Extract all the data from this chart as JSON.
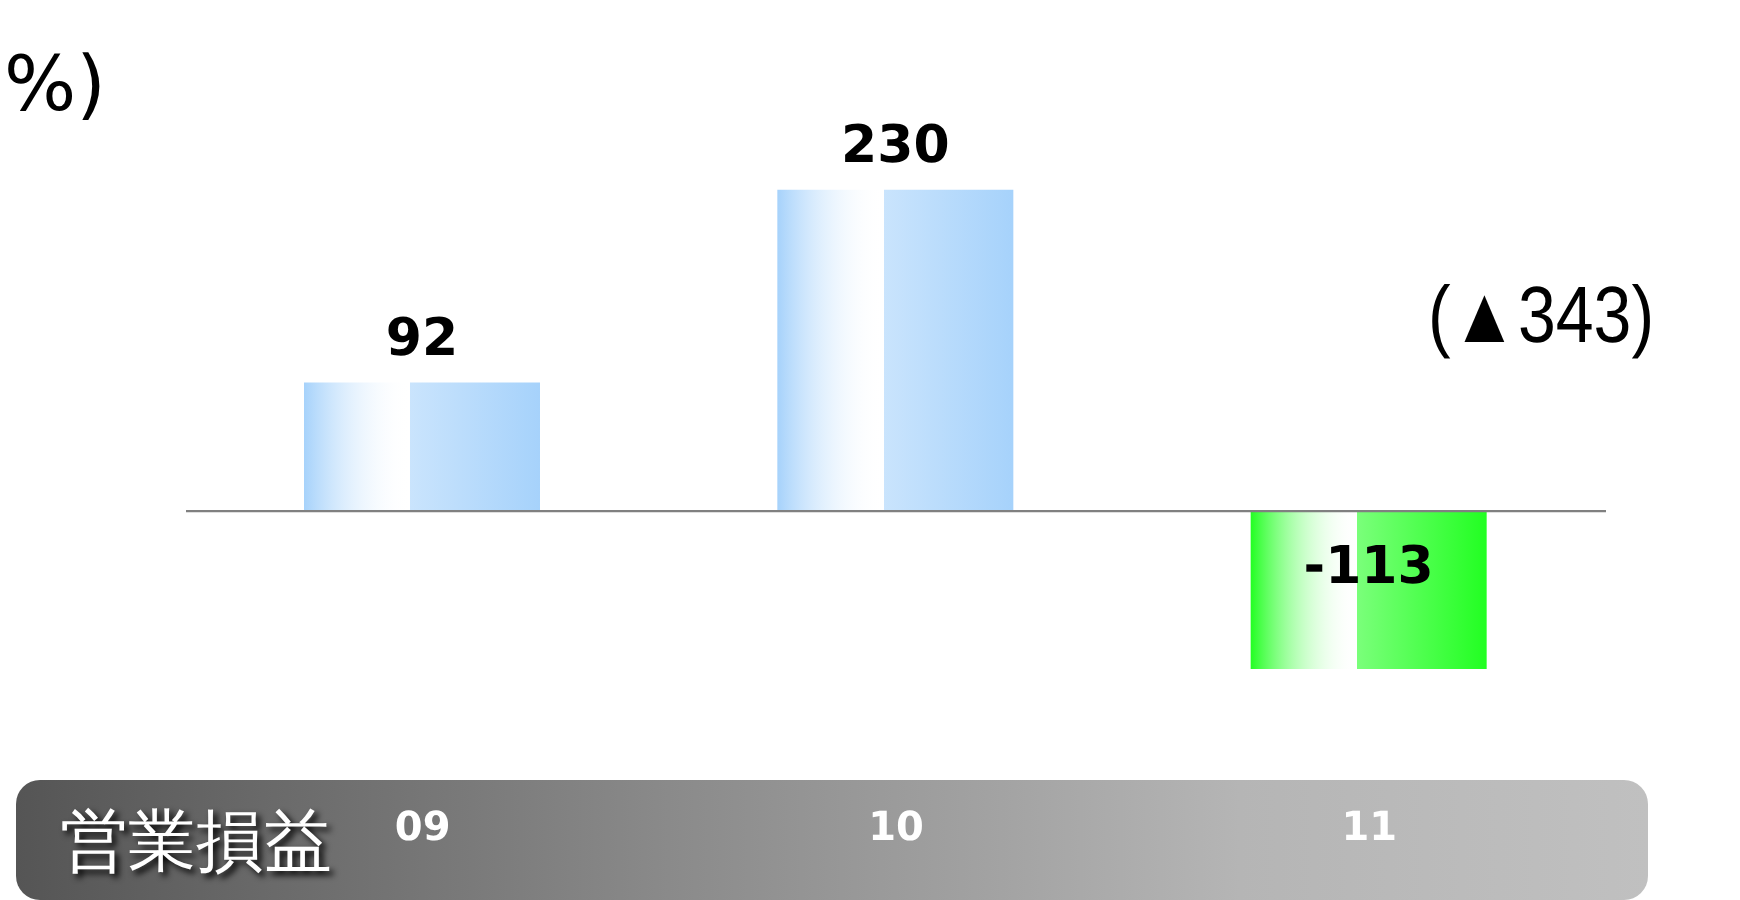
{
  "chart_data": {
    "type": "bar",
    "title": "営業損益",
    "categories": [
      "09",
      "10",
      "11"
    ],
    "values": [
      92,
      230,
      -113
    ],
    "colors": [
      "#a6d2fb",
      "#a6d2fb",
      "#22ff22"
    ],
    "data_labels": true,
    "ref_lines": [
      {
        "axis": "y",
        "value": 0,
        "color": "#808080"
      }
    ],
    "annotations": [
      "(▲343)",
      "%)"
    ]
  }
}
